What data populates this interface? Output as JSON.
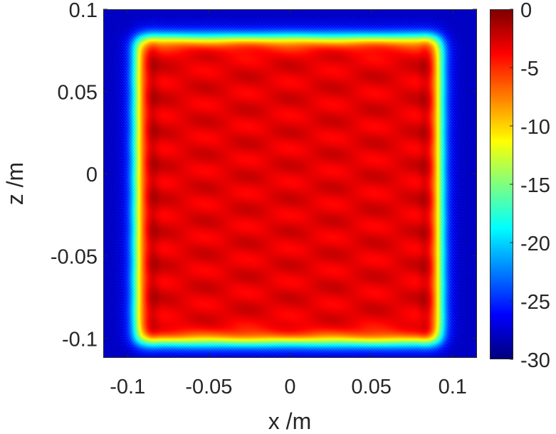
{
  "chart_data": {
    "type": "heatmap",
    "title": "",
    "xlabel": "x /m",
    "ylabel": "z /m",
    "xlim": [
      -0.115,
      0.115
    ],
    "ylim": [
      -0.112,
      0.1
    ],
    "xticks": [
      {
        "value": -0.1,
        "label": "-0.1"
      },
      {
        "value": -0.05,
        "label": "-0.05"
      },
      {
        "value": 0,
        "label": "0"
      },
      {
        "value": 0.05,
        "label": "0.05"
      },
      {
        "value": 0.1,
        "label": "0.1"
      }
    ],
    "yticks": [
      {
        "value": 0.1,
        "label": "0.1"
      },
      {
        "value": 0.05,
        "label": "0.05"
      },
      {
        "value": 0,
        "label": "0"
      },
      {
        "value": -0.05,
        "label": "-0.05"
      },
      {
        "value": -0.1,
        "label": "-0.1"
      }
    ],
    "colorbar": {
      "range": [
        -30,
        0
      ],
      "ticks": [
        {
          "value": 0,
          "label": "0"
        },
        {
          "value": -5,
          "label": "-5"
        },
        {
          "value": -10,
          "label": "-10"
        },
        {
          "value": -15,
          "label": "-15"
        },
        {
          "value": -20,
          "label": "-20"
        },
        {
          "value": -25,
          "label": "-25"
        },
        {
          "value": -30,
          "label": "-30"
        }
      ],
      "colormap": "jet"
    },
    "field": {
      "plateau_x_range": [
        -0.095,
        0.093
      ],
      "plateau_z_range": [
        -0.103,
        0.083
      ],
      "plateau_level_db": -3,
      "background_level_db": -28
    }
  }
}
